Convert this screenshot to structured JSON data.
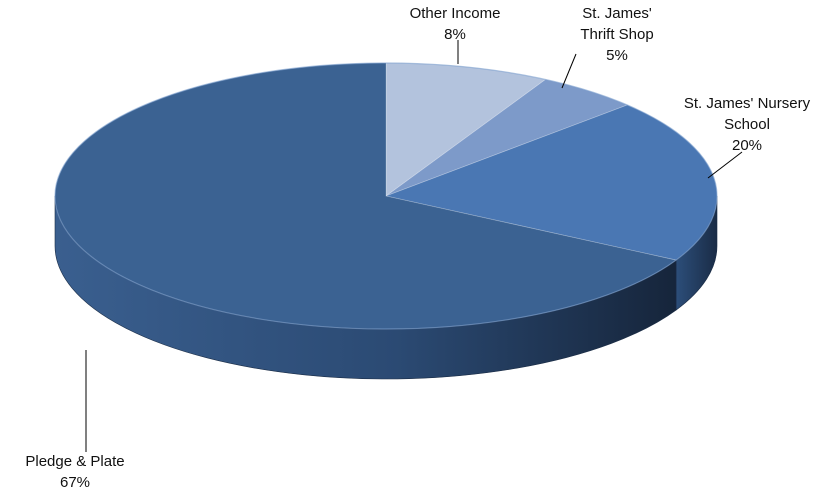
{
  "chart_data": {
    "type": "pie",
    "title": "",
    "slices": [
      {
        "label": "Other Income",
        "label_lines": [
          "Other Income"
        ],
        "value_label": "8%",
        "value": 8,
        "color": "#b3c3dd"
      },
      {
        "label": "St. James' Thrift Shop",
        "label_lines": [
          "St. James'",
          "Thrift Shop"
        ],
        "value_label": "5%",
        "value": 5,
        "color": "#7d9ac9"
      },
      {
        "label": "St. James' Nursery School",
        "label_lines": [
          "St. James' Nursery",
          "School"
        ],
        "value_label": "20%",
        "value": 20,
        "color": "#4a77b3"
      },
      {
        "label": "Pledge & Plate",
        "label_lines": [
          "Pledge & Plate"
        ],
        "value_label": "67%",
        "value": 67,
        "color": "#3b6292"
      }
    ],
    "start_angle": "12 o'clock",
    "direction": "clockwise",
    "style": "3d-tilted",
    "legend": "none",
    "data_labels": "outside with leader lines"
  }
}
